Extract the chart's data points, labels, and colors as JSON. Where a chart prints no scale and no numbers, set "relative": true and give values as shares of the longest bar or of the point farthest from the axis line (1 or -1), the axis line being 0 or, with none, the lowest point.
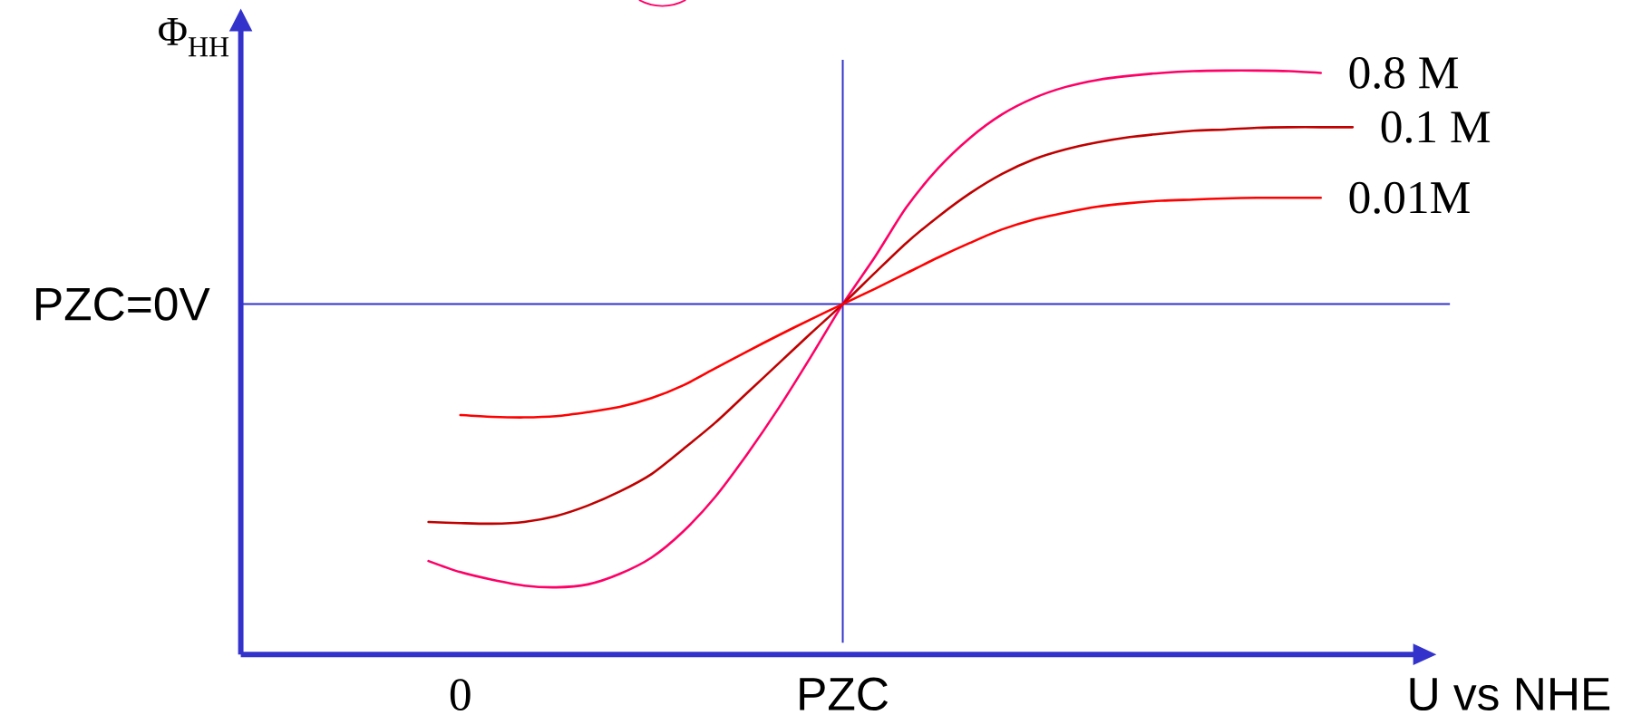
{
  "chart_data": {
    "type": "line",
    "relative": true,
    "ylabel": "Φ$_{HH}$",
    "xlabel": "U vs NHE",
    "categories": [
      null,
      "0",
      null,
      null,
      null,
      null,
      null,
      null,
      null,
      null,
      null,
      null,
      null,
      "PZC",
      null,
      null,
      null,
      null,
      null,
      null,
      null,
      null,
      null,
      null,
      null,
      null,
      null,
      null,
      null,
      null
    ],
    "line_style": "solid",
    "annotations": [
      "PZC=0V"
    ],
    "ref_lines": [
      {
        "axis": "y",
        "value": 0.6,
        "color": "#3333cc"
      },
      {
        "axis": "x",
        "value": "PZC",
        "color": "#3333cc"
      }
    ],
    "series": [
      {
        "name": "0.8 M",
        "color": "#ff0066",
        "values": [
          0.16,
          0.141,
          0.128,
          0.118,
          0.115,
          0.12,
          0.138,
          0.166,
          0.211,
          0.27,
          0.343,
          0.423,
          0.51,
          0.6,
          0.68,
          0.766,
          0.833,
          0.885,
          0.925,
          0.953,
          0.972,
          0.984,
          0.991,
          0.996,
          0.999,
          1.0,
          1.0,
          0.999,
          0.996,
          null
        ]
      },
      {
        "name": "0.1 M",
        "color": "#c00000",
        "values": [
          0.227,
          0.225,
          0.224,
          0.227,
          0.237,
          0.255,
          0.279,
          0.309,
          0.352,
          0.397,
          0.448,
          0.499,
          0.55,
          0.6,
          0.653,
          0.705,
          0.75,
          0.79,
          0.823,
          0.848,
          0.865,
          0.877,
          0.886,
          0.892,
          0.897,
          0.899,
          0.902,
          0.903,
          0.903,
          0.903
        ]
      },
      {
        "name": "0.01M",
        "color": "#ff0000",
        "values": [
          null,
          0.41,
          0.407,
          0.406,
          0.408,
          0.415,
          0.424,
          0.439,
          0.461,
          0.49,
          0.519,
          0.547,
          0.574,
          0.6,
          0.626,
          0.653,
          0.68,
          0.705,
          0.728,
          0.745,
          0.757,
          0.767,
          0.773,
          0.777,
          0.779,
          0.781,
          0.782,
          0.782,
          0.782,
          null
        ]
      }
    ]
  }
}
